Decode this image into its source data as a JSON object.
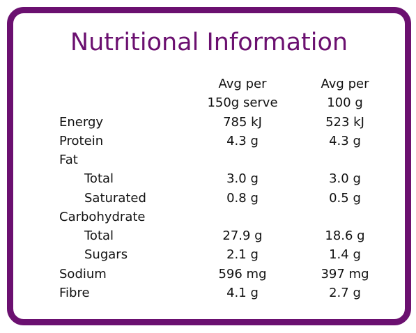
{
  "title": "Nutritional Information",
  "headers": {
    "col1": [
      "Avg per",
      "150g serve"
    ],
    "col2": [
      "Avg per",
      "100 g"
    ]
  },
  "rows": [
    {
      "label": "Energy",
      "v1": "785 kJ",
      "v2": "523 kJ"
    },
    {
      "label": "Protein",
      "v1": "4.3 g",
      "v2": "4.3 g"
    },
    {
      "label": "Fat",
      "v1": "",
      "v2": ""
    },
    {
      "label": "Total",
      "v1": "3.0 g",
      "v2": "3.0 g"
    },
    {
      "label": "Saturated",
      "v1": "0.8 g",
      "v2": "0.5 g"
    },
    {
      "label": "Carbohydrate",
      "v1": "",
      "v2": ""
    },
    {
      "label": "Total",
      "v1": "27.9 g",
      "v2": "18.6 g"
    },
    {
      "label": "Sugars",
      "v1": "2.1 g",
      "v2": "1.4 g"
    },
    {
      "label": "Sodium",
      "v1": "596 mg",
      "v2": "397 mg"
    },
    {
      "label": "Fibre",
      "v1": "4.1 g",
      "v2": "2.7 g"
    }
  ],
  "colors": {
    "accent": "#6b1070",
    "text": "#111111"
  }
}
